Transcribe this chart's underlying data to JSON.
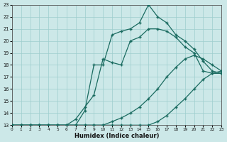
{
  "xlabel": "Humidex (Indice chaleur)",
  "bg_color": "#cce8e8",
  "line_color": "#1a6b60",
  "grid_color": "#9ecece",
  "xlim": [
    0,
    23
  ],
  "ylim": [
    13,
    23
  ],
  "yticks": [
    13,
    14,
    15,
    16,
    17,
    18,
    19,
    20,
    21,
    22,
    23
  ],
  "xticks": [
    0,
    1,
    2,
    3,
    4,
    5,
    6,
    7,
    8,
    9,
    10,
    11,
    12,
    13,
    14,
    15,
    16,
    17,
    18,
    19,
    20,
    21,
    22,
    23
  ],
  "line1_x": [
    0,
    1,
    2,
    3,
    4,
    5,
    6,
    7,
    8,
    9,
    10,
    11,
    12,
    13,
    14,
    15,
    16,
    17,
    18,
    19,
    20,
    21,
    22,
    23
  ],
  "line1_y": [
    13,
    13,
    13,
    13,
    13,
    13,
    13,
    13,
    13,
    13,
    13,
    13,
    13,
    13,
    13,
    13,
    13.3,
    13.8,
    14.5,
    15.2,
    16.0,
    16.8,
    17.3,
    17.5
  ],
  "line2_x": [
    0,
    1,
    2,
    3,
    4,
    5,
    6,
    7,
    8,
    9,
    10,
    11,
    12,
    13,
    14,
    15,
    16,
    17,
    18,
    19,
    20,
    21,
    22,
    23
  ],
  "line2_y": [
    13,
    13,
    13,
    13,
    13,
    13,
    13,
    13,
    13,
    13,
    13,
    13.3,
    13.6,
    14.0,
    14.5,
    15.2,
    16.0,
    17.0,
    17.8,
    18.5,
    18.8,
    18.5,
    18.0,
    17.5
  ],
  "line3_x": [
    0,
    1,
    2,
    3,
    4,
    5,
    6,
    7,
    8,
    9,
    10,
    11,
    12,
    13,
    14,
    15,
    16,
    17,
    18,
    19,
    20,
    21,
    22,
    23
  ],
  "line3_y": [
    13,
    13,
    13,
    13,
    13,
    13,
    13,
    13.5,
    14.5,
    15.5,
    18.5,
    18.2,
    18.0,
    20.0,
    20.3,
    21.0,
    21.0,
    20.8,
    20.3,
    19.5,
    19.0,
    17.5,
    17.3,
    17.3
  ],
  "line4_x": [
    0,
    1,
    2,
    3,
    4,
    5,
    6,
    7,
    8,
    9,
    10,
    11,
    12,
    13,
    14,
    15,
    16,
    17,
    18,
    19,
    20,
    21,
    22,
    23
  ],
  "line4_y": [
    13,
    13,
    13,
    13,
    13,
    13,
    13,
    13,
    14.2,
    18.0,
    18.0,
    20.5,
    20.8,
    21.0,
    21.5,
    23.0,
    22.0,
    21.5,
    20.5,
    20.0,
    19.3,
    18.3,
    17.5,
    17.3
  ],
  "linewidth": 0.9,
  "markersize": 3
}
